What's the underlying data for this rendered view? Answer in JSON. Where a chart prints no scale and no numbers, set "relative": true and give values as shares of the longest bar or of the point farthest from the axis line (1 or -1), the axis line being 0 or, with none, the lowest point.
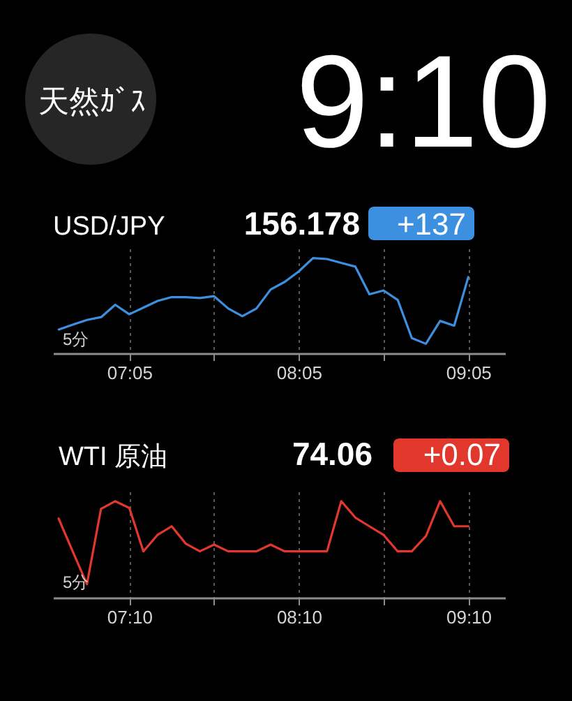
{
  "chart_data": [
    {
      "type": "other",
      "annotations": [
        "天然ｶﾞｽ",
        "9:10"
      ]
    },
    {
      "type": "line",
      "title": "USD/JPY",
      "annotations": [
        "156.178",
        "+137",
        "5分"
      ],
      "relative": true,
      "x": [
        6.667,
        6.75,
        6.833,
        6.917,
        7.0,
        7.083,
        7.167,
        7.25,
        7.333,
        7.417,
        7.5,
        7.583,
        7.667,
        7.75,
        7.833,
        7.917,
        8.0,
        8.083,
        8.167,
        8.25,
        8.333,
        8.417,
        8.5,
        8.583,
        8.667,
        8.75,
        8.833,
        8.917,
        9.0,
        9.083
      ],
      "series": [
        {
          "color": "#3d8fe0",
          "values": [
            0.25,
            0.3,
            0.35,
            0.38,
            0.51,
            0.41,
            0.48,
            0.55,
            0.59,
            0.59,
            0.58,
            0.6,
            0.47,
            0.39,
            0.47,
            0.67,
            0.75,
            0.86,
            1.0,
            0.99,
            0.95,
            0.91,
            0.62,
            0.66,
            0.56,
            0.16,
            0.1,
            0.34,
            0.29,
            0.8
          ]
        }
      ],
      "xlim": [
        6.633,
        9.3
      ],
      "xticks": [
        {
          "value": 7.083,
          "label": "07:05"
        },
        {
          "value": 7.583,
          "label": null
        },
        {
          "value": 8.083,
          "label": "08:05"
        },
        {
          "value": 8.583,
          "label": null
        },
        {
          "value": 9.083,
          "label": "09:05"
        }
      ],
      "grid": "x"
    },
    {
      "type": "line",
      "title": "WTI 原油",
      "annotations": [
        "74.06",
        "+0.07",
        "5分"
      ],
      "relative": true,
      "x": [
        6.75,
        6.833,
        6.917,
        7.0,
        7.083,
        7.167,
        7.25,
        7.333,
        7.417,
        7.5,
        7.583,
        7.667,
        7.75,
        7.833,
        7.917,
        8.0,
        8.083,
        8.167,
        8.25,
        8.333,
        8.417,
        8.5,
        8.583,
        8.667,
        8.75,
        8.833,
        8.917,
        9.0,
        9.083,
        9.167
      ],
      "series": [
        {
          "color": "#e2372d",
          "values": [
            0.82,
            0.48,
            0.14,
            0.92,
            1.0,
            0.93,
            0.48,
            0.65,
            0.74,
            0.56,
            0.48,
            0.55,
            0.48,
            0.48,
            0.48,
            0.55,
            0.48,
            0.48,
            0.48,
            0.48,
            1.0,
            0.83,
            0.74,
            0.65,
            0.48,
            0.48,
            0.64,
            1.0,
            0.74,
            0.74
          ]
        }
      ],
      "xlim": [
        6.717,
        9.383
      ],
      "xticks": [
        {
          "value": 7.167,
          "label": "07:10"
        },
        {
          "value": 7.667,
          "label": null
        },
        {
          "value": 8.167,
          "label": "08:10"
        },
        {
          "value": 8.667,
          "label": null
        },
        {
          "value": 9.167,
          "label": "09:10"
        }
      ],
      "grid": "x"
    }
  ]
}
